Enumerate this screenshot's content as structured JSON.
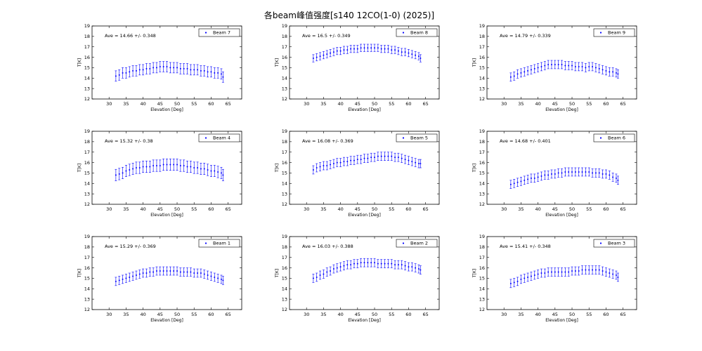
{
  "title": "各beam峰值强度[s140  12CO(1-0) (2025)]",
  "colors": {
    "series": "#0000ff",
    "axes": "#000000",
    "background": "#ffffff"
  },
  "chart_data": [
    {
      "type": "scatter",
      "legend": "Beam 7",
      "annotation": "Ave = 14.66 +/- 0.348",
      "xlabel": "Elevation [Deg]",
      "ylabel": "T[K]",
      "xlim": [
        25,
        69
      ],
      "ylim": [
        12,
        19
      ],
      "xticks": [
        30,
        35,
        40,
        45,
        50,
        55,
        60,
        65
      ],
      "yticks": [
        12,
        13,
        14,
        15,
        16,
        17,
        18,
        19
      ],
      "legend_position": "upper-right",
      "series": [
        {
          "name": "Beam 7",
          "x": [
            32,
            33,
            34,
            35,
            36,
            37,
            38,
            39,
            40,
            41,
            42,
            43,
            44,
            45,
            46,
            47,
            48,
            49,
            50,
            51,
            52,
            53,
            54,
            55,
            56,
            57,
            58,
            59,
            60,
            61,
            62,
            63,
            63.5
          ],
          "y": [
            14.2,
            14.3,
            14.5,
            14.5,
            14.6,
            14.7,
            14.7,
            14.8,
            14.8,
            14.9,
            14.9,
            15.0,
            15.0,
            15.1,
            15.1,
            15.1,
            15.0,
            15.0,
            15.0,
            14.9,
            14.9,
            14.9,
            14.8,
            14.8,
            14.8,
            14.7,
            14.7,
            14.6,
            14.6,
            14.5,
            14.5,
            14.4,
            14.1
          ],
          "yerr": 0.5
        }
      ]
    },
    {
      "type": "scatter",
      "legend": "Beam 8",
      "annotation": "Ave = 16.5 +/- 0.349",
      "xlabel": "Elevation [Deg]",
      "ylabel": "T[K]",
      "xlim": [
        25,
        69
      ],
      "ylim": [
        12,
        19
      ],
      "xticks": [
        30,
        35,
        40,
        45,
        50,
        55,
        60,
        65
      ],
      "yticks": [
        12,
        13,
        14,
        15,
        16,
        17,
        18,
        19
      ],
      "legend_position": "upper-right",
      "series": [
        {
          "name": "Beam 8",
          "x": [
            32,
            33,
            34,
            35,
            36,
            37,
            38,
            39,
            40,
            41,
            42,
            43,
            44,
            45,
            46,
            47,
            48,
            49,
            50,
            51,
            52,
            53,
            54,
            55,
            56,
            57,
            58,
            59,
            60,
            61,
            62,
            63,
            63.5
          ],
          "y": [
            15.9,
            16.0,
            16.1,
            16.2,
            16.3,
            16.4,
            16.5,
            16.6,
            16.6,
            16.7,
            16.7,
            16.8,
            16.8,
            16.8,
            16.9,
            16.9,
            16.9,
            16.9,
            16.9,
            16.9,
            16.8,
            16.8,
            16.8,
            16.7,
            16.7,
            16.6,
            16.5,
            16.5,
            16.4,
            16.3,
            16.2,
            16.1,
            15.9
          ],
          "yerr": 0.35
        }
      ]
    },
    {
      "type": "scatter",
      "legend": "Beam 9",
      "annotation": "Ave = 14.79 +/- 0.339",
      "xlabel": "Elevation [Deg]",
      "ylabel": "T[K]",
      "xlim": [
        25,
        69
      ],
      "ylim": [
        12,
        19
      ],
      "xticks": [
        30,
        35,
        40,
        45,
        50,
        55,
        60,
        65
      ],
      "yticks": [
        12,
        13,
        14,
        15,
        16,
        17,
        18,
        19
      ],
      "legend_position": "upper-right",
      "series": [
        {
          "name": "Beam 9",
          "x": [
            32,
            33,
            34,
            35,
            36,
            37,
            38,
            39,
            40,
            41,
            42,
            43,
            44,
            45,
            46,
            47,
            48,
            49,
            50,
            51,
            52,
            53,
            54,
            55,
            56,
            57,
            58,
            59,
            60,
            61,
            62,
            63,
            63.5
          ],
          "y": [
            14.1,
            14.2,
            14.4,
            14.5,
            14.6,
            14.7,
            14.8,
            14.9,
            15.0,
            15.1,
            15.2,
            15.3,
            15.3,
            15.3,
            15.3,
            15.3,
            15.2,
            15.2,
            15.2,
            15.1,
            15.1,
            15.1,
            15.0,
            15.1,
            15.1,
            15.0,
            14.9,
            14.8,
            14.7,
            14.6,
            14.6,
            14.5,
            14.4
          ],
          "yerr": 0.4
        }
      ]
    },
    {
      "type": "scatter",
      "legend": "Beam 4",
      "annotation": "Ave = 15.32 +/- 0.38",
      "xlabel": "Elevation [Deg]",
      "ylabel": "T[K]",
      "xlim": [
        25,
        69
      ],
      "ylim": [
        12,
        19
      ],
      "xticks": [
        30,
        35,
        40,
        45,
        50,
        55,
        60,
        65
      ],
      "yticks": [
        12,
        13,
        14,
        15,
        16,
        17,
        18,
        19
      ],
      "legend_position": "upper-right",
      "series": [
        {
          "name": "Beam 4",
          "x": [
            32,
            33,
            34,
            35,
            36,
            37,
            38,
            39,
            40,
            41,
            42,
            43,
            44,
            45,
            46,
            47,
            48,
            49,
            50,
            51,
            52,
            53,
            54,
            55,
            56,
            57,
            58,
            59,
            60,
            61,
            62,
            63,
            63.5
          ],
          "y": [
            14.8,
            14.9,
            15.0,
            15.2,
            15.3,
            15.4,
            15.5,
            15.5,
            15.6,
            15.6,
            15.6,
            15.7,
            15.7,
            15.7,
            15.8,
            15.8,
            15.8,
            15.8,
            15.8,
            15.7,
            15.7,
            15.6,
            15.6,
            15.5,
            15.5,
            15.4,
            15.4,
            15.3,
            15.2,
            15.2,
            15.1,
            15.0,
            14.8
          ],
          "yerr": 0.55
        }
      ]
    },
    {
      "type": "scatter",
      "legend": "Beam 5",
      "annotation": "Ave = 16.08 +/- 0.369",
      "xlabel": "Elevation [Deg]",
      "ylabel": "T[K]",
      "xlim": [
        25,
        69
      ],
      "ylim": [
        12,
        19
      ],
      "xticks": [
        30,
        35,
        40,
        45,
        50,
        55,
        60,
        65
      ],
      "yticks": [
        12,
        13,
        14,
        15,
        16,
        17,
        18,
        19
      ],
      "legend_position": "upper-right",
      "series": [
        {
          "name": "Beam 5",
          "x": [
            32,
            33,
            34,
            35,
            36,
            37,
            38,
            39,
            40,
            41,
            42,
            43,
            44,
            45,
            46,
            47,
            48,
            49,
            50,
            51,
            52,
            53,
            54,
            55,
            56,
            57,
            58,
            59,
            60,
            61,
            62,
            63,
            63.5
          ],
          "y": [
            15.3,
            15.5,
            15.6,
            15.7,
            15.7,
            15.8,
            15.9,
            16.0,
            16.0,
            16.1,
            16.1,
            16.2,
            16.2,
            16.3,
            16.3,
            16.4,
            16.4,
            16.5,
            16.5,
            16.6,
            16.6,
            16.6,
            16.6,
            16.6,
            16.5,
            16.5,
            16.4,
            16.3,
            16.2,
            16.1,
            16.0,
            15.9,
            15.9
          ],
          "yerr": 0.4
        }
      ]
    },
    {
      "type": "scatter",
      "legend": "Beam 6",
      "annotation": "Ave = 14.68 +/- 0.401",
      "xlabel": "Elevation [Deg]",
      "ylabel": "T[K]",
      "xlim": [
        25,
        69
      ],
      "ylim": [
        12,
        19
      ],
      "xticks": [
        30,
        35,
        40,
        45,
        50,
        55,
        60,
        65
      ],
      "yticks": [
        12,
        13,
        14,
        15,
        16,
        17,
        18,
        19
      ],
      "legend_position": "upper-right",
      "series": [
        {
          "name": "Beam 6",
          "x": [
            32,
            33,
            34,
            35,
            36,
            37,
            38,
            39,
            40,
            41,
            42,
            43,
            44,
            45,
            46,
            47,
            48,
            49,
            50,
            51,
            52,
            53,
            54,
            55,
            56,
            57,
            58,
            59,
            60,
            61,
            62,
            63,
            63.5
          ],
          "y": [
            13.9,
            14.0,
            14.1,
            14.2,
            14.3,
            14.4,
            14.5,
            14.5,
            14.6,
            14.7,
            14.8,
            14.8,
            14.9,
            14.9,
            15.0,
            15.0,
            15.1,
            15.1,
            15.1,
            15.1,
            15.1,
            15.1,
            15.1,
            15.1,
            15.0,
            15.0,
            15.0,
            14.9,
            14.9,
            14.8,
            14.6,
            14.5,
            14.3
          ],
          "yerr": 0.4
        }
      ]
    },
    {
      "type": "scatter",
      "legend": "Beam 1",
      "annotation": "Ave = 15.29 +/- 0.369",
      "xlabel": "Elevation [Deg]",
      "ylabel": "T[K]",
      "xlim": [
        25,
        69
      ],
      "ylim": [
        12,
        19
      ],
      "xticks": [
        30,
        35,
        40,
        45,
        50,
        55,
        60,
        65
      ],
      "yticks": [
        12,
        13,
        14,
        15,
        16,
        17,
        18,
        19
      ],
      "legend_position": "upper-right",
      "series": [
        {
          "name": "Beam 1",
          "x": [
            32,
            33,
            34,
            35,
            36,
            37,
            38,
            39,
            40,
            41,
            42,
            43,
            44,
            45,
            46,
            47,
            48,
            49,
            50,
            51,
            52,
            53,
            54,
            55,
            56,
            57,
            58,
            59,
            60,
            61,
            62,
            63,
            63.5
          ],
          "y": [
            14.7,
            14.8,
            14.9,
            15.0,
            15.1,
            15.2,
            15.3,
            15.4,
            15.5,
            15.5,
            15.6,
            15.6,
            15.7,
            15.7,
            15.7,
            15.7,
            15.7,
            15.7,
            15.7,
            15.6,
            15.6,
            15.6,
            15.6,
            15.5,
            15.5,
            15.5,
            15.4,
            15.3,
            15.2,
            15.1,
            15.0,
            14.9,
            14.8
          ],
          "yerr": 0.4
        }
      ]
    },
    {
      "type": "scatter",
      "legend": "Beam 2",
      "annotation": "Ave = 16.03 +/- 0.388",
      "xlabel": "Elevation [Deg]",
      "ylabel": "T[K]",
      "xlim": [
        25,
        69
      ],
      "ylim": [
        12,
        19
      ],
      "xticks": [
        30,
        35,
        40,
        45,
        50,
        55,
        60,
        65
      ],
      "yticks": [
        12,
        13,
        14,
        15,
        16,
        17,
        18,
        19
      ],
      "legend_position": "upper-right",
      "series": [
        {
          "name": "Beam 2",
          "x": [
            32,
            33,
            34,
            35,
            36,
            37,
            38,
            39,
            40,
            41,
            42,
            43,
            44,
            45,
            46,
            47,
            48,
            49,
            50,
            51,
            52,
            53,
            54,
            55,
            56,
            57,
            58,
            59,
            60,
            61,
            62,
            63,
            63.5
          ],
          "y": [
            15.0,
            15.1,
            15.3,
            15.4,
            15.6,
            15.7,
            15.9,
            16.0,
            16.1,
            16.2,
            16.3,
            16.3,
            16.4,
            16.4,
            16.5,
            16.5,
            16.5,
            16.5,
            16.5,
            16.4,
            16.4,
            16.4,
            16.4,
            16.4,
            16.3,
            16.3,
            16.3,
            16.2,
            16.1,
            16.1,
            16.0,
            15.9,
            15.8
          ],
          "yerr": 0.4
        }
      ]
    },
    {
      "type": "scatter",
      "legend": "Beam 3",
      "annotation": "Ave = 15.41 +/- 0.348",
      "xlabel": "Elevation [Deg]",
      "ylabel": "T[K]",
      "xlim": [
        25,
        69
      ],
      "ylim": [
        12,
        19
      ],
      "xticks": [
        30,
        35,
        40,
        45,
        50,
        55,
        60,
        65
      ],
      "yticks": [
        12,
        13,
        14,
        15,
        16,
        17,
        18,
        19
      ],
      "legend_position": "upper-right",
      "series": [
        {
          "name": "Beam 3",
          "x": [
            32,
            33,
            34,
            35,
            36,
            37,
            38,
            39,
            40,
            41,
            42,
            43,
            44,
            45,
            46,
            47,
            48,
            49,
            50,
            51,
            52,
            53,
            54,
            55,
            56,
            57,
            58,
            59,
            60,
            61,
            62,
            63,
            63.5
          ],
          "y": [
            14.5,
            14.6,
            14.7,
            14.9,
            15.0,
            15.1,
            15.2,
            15.3,
            15.4,
            15.5,
            15.5,
            15.6,
            15.6,
            15.6,
            15.6,
            15.6,
            15.6,
            15.6,
            15.7,
            15.7,
            15.7,
            15.8,
            15.8,
            15.8,
            15.8,
            15.8,
            15.8,
            15.7,
            15.6,
            15.5,
            15.4,
            15.3,
            15.1
          ],
          "yerr": 0.4
        }
      ]
    }
  ]
}
